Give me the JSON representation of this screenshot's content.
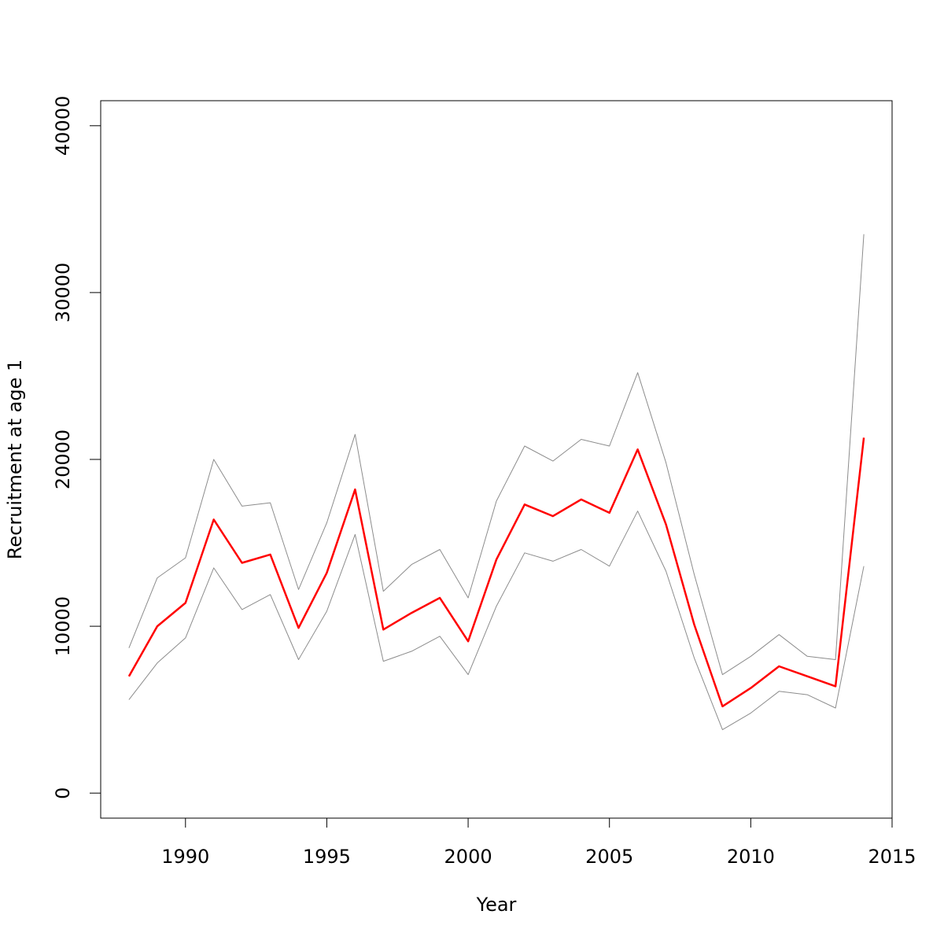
{
  "chart_data": {
    "type": "line",
    "title": "",
    "xlabel": "Year",
    "ylabel": "Recruitment at age 1",
    "xlim": [
      1987,
      2015
    ],
    "ylim": [
      -1500,
      41500
    ],
    "x_ticks": [
      1990,
      1995,
      2000,
      2005,
      2010,
      2015
    ],
    "y_ticks": [
      0,
      10000,
      20000,
      30000,
      40000
    ],
    "grid": false,
    "legend": "none",
    "x": [
      1988,
      1989,
      1990,
      1991,
      1992,
      1993,
      1994,
      1995,
      1996,
      1997,
      1998,
      1999,
      2000,
      2001,
      2002,
      2003,
      2004,
      2005,
      2006,
      2007,
      2008,
      2009,
      2010,
      2011,
      2012,
      2013,
      2014
    ],
    "series": [
      {
        "role": "upper",
        "color": "#8c8c8c",
        "values": [
          8700,
          12900,
          14100,
          20000,
          17200,
          17400,
          12200,
          16200,
          21500,
          12100,
          13700,
          14600,
          11700,
          17500,
          20800,
          19900,
          21200,
          20800,
          25200,
          19800,
          13100,
          7100,
          8200,
          9500,
          8200,
          8000,
          33500
        ]
      },
      {
        "role": "estimate",
        "color": "#ff0000",
        "values": [
          7000,
          10000,
          11400,
          16400,
          13800,
          14300,
          9900,
          13200,
          18200,
          9800,
          10800,
          11700,
          9100,
          14000,
          17300,
          16600,
          17600,
          16800,
          20600,
          16100,
          10100,
          5200,
          6300,
          7600,
          7000,
          6400,
          21300
        ]
      },
      {
        "role": "lower",
        "color": "#8c8c8c",
        "values": [
          5600,
          7800,
          9300,
          13500,
          11000,
          11900,
          8000,
          10900,
          15500,
          7900,
          8500,
          9400,
          7100,
          11200,
          14400,
          13900,
          14600,
          13600,
          16900,
          13300,
          8100,
          3800,
          4800,
          6100,
          5900,
          5100,
          13600
        ]
      }
    ]
  }
}
